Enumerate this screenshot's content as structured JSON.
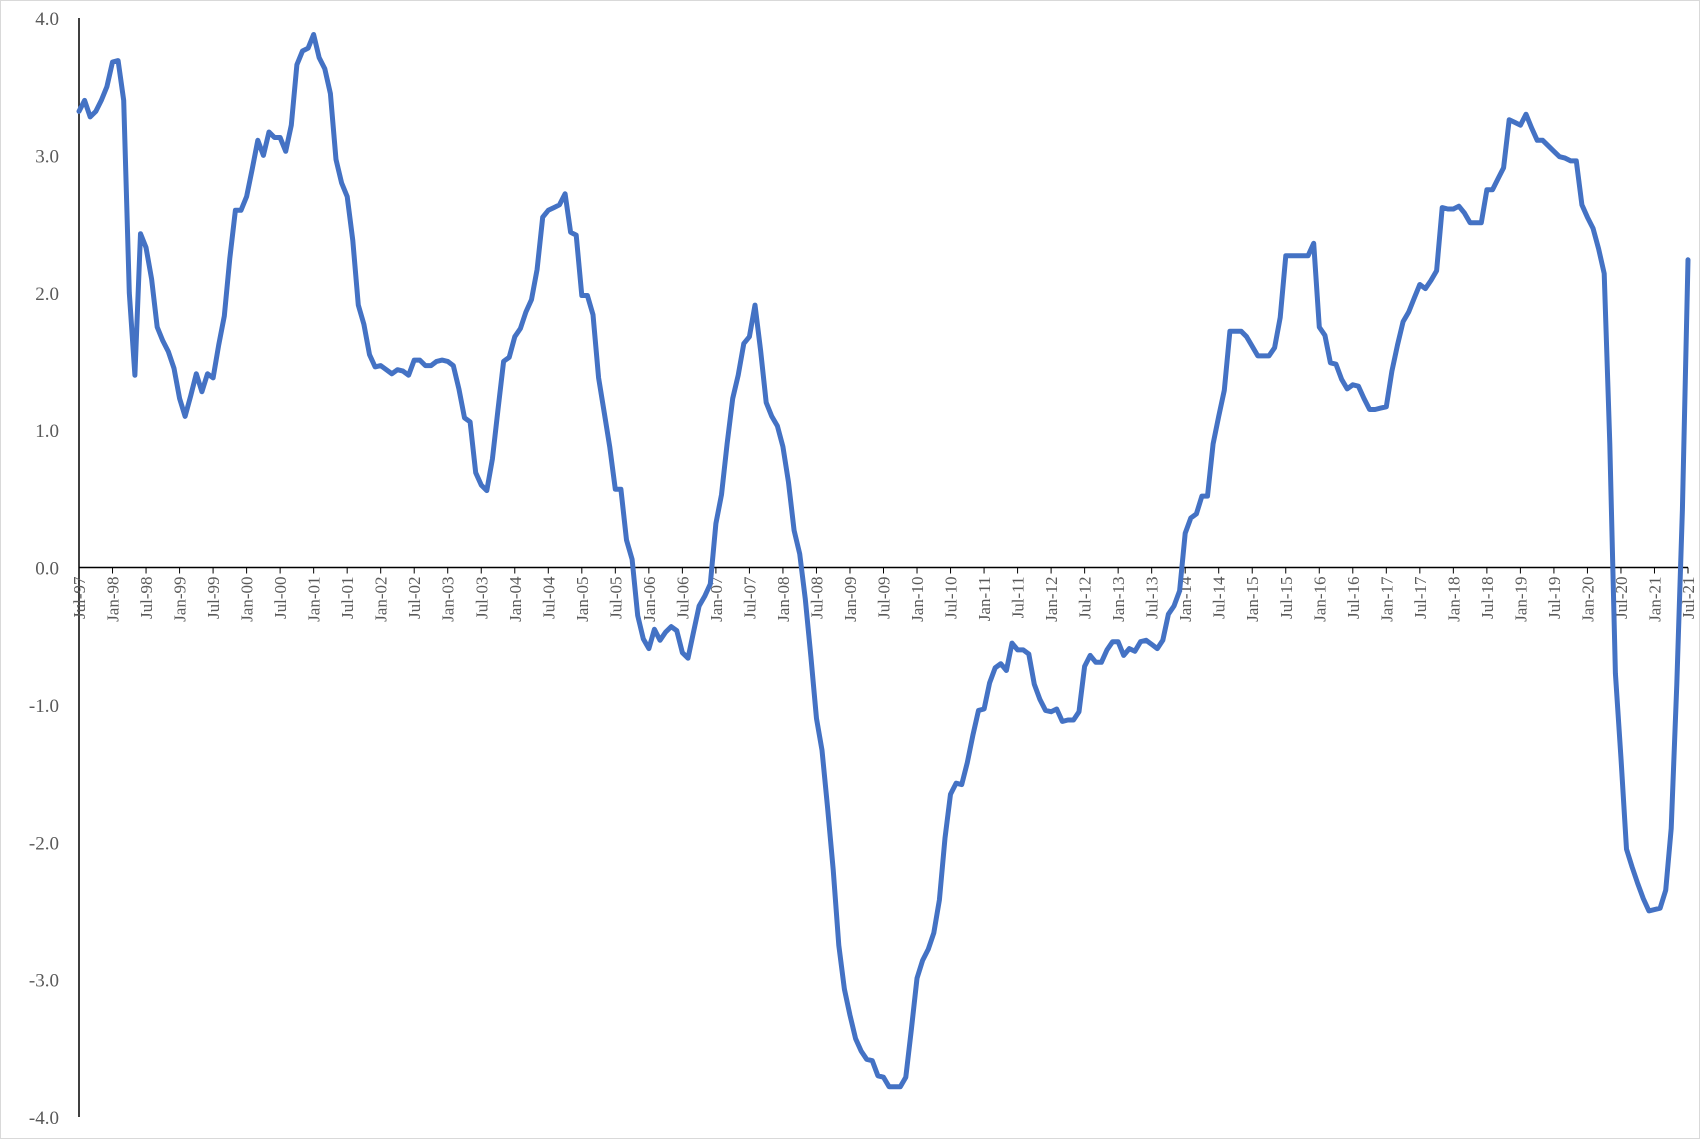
{
  "chart_data": {
    "type": "line",
    "title": "",
    "xlabel": "",
    "ylabel": "",
    "ylim": [
      -4.0,
      4.0
    ],
    "yticks": [
      "4.0",
      "3.0",
      "2.0",
      "1.0",
      "0.0",
      "-1.0",
      "-2.0",
      "-3.0",
      "-4.0"
    ],
    "xlim": [
      "1997-07",
      "2021-07"
    ],
    "xtick_labels": [
      "Jul-97",
      "Jan-98",
      "Jul-98",
      "Jan-99",
      "Jul-99",
      "Jan-00",
      "Jul-00",
      "Jan-01",
      "Jul-01",
      "Jan-02",
      "Jul-02",
      "Jan-03",
      "Jul-03",
      "Jan-04",
      "Jul-04",
      "Jan-05",
      "Jul-05",
      "Jan-06",
      "Jul-06",
      "Jan-07",
      "Jul-07",
      "Jan-08",
      "Jul-08",
      "Jan-09",
      "Jul-09",
      "Jan-10",
      "Jul-10",
      "Jan-11",
      "Jul-11",
      "Jan-12",
      "Jul-12",
      "Jan-13",
      "Jul-13",
      "Jan-14",
      "Jul-14",
      "Jan-15",
      "Jul-15",
      "Jan-16",
      "Jul-16",
      "Jan-17",
      "Jul-17",
      "Jan-18",
      "Jul-18",
      "Jan-19",
      "Jul-19",
      "Jan-20",
      "Jul-20",
      "Jan-21",
      "Jul-21"
    ],
    "grid": false,
    "legend": "none",
    "line_color": "#4472c4",
    "series": [
      {
        "x": [
          "1997-07",
          "1997-08",
          "1997-09",
          "1997-10",
          "1997-11",
          "1997-12",
          "1998-01",
          "1998-02",
          "1998-03",
          "1998-04",
          "1998-05",
          "1998-06",
          "1998-07",
          "1998-08",
          "1998-09",
          "1998-10",
          "1998-11",
          "1998-12",
          "1999-01",
          "1999-02",
          "1999-03",
          "1999-04",
          "1999-05",
          "1999-06",
          "1999-07",
          "1999-08",
          "1999-09",
          "1999-10",
          "1999-11",
          "1999-12",
          "2000-01",
          "2000-02",
          "2000-03",
          "2000-04",
          "2000-05",
          "2000-06",
          "2000-07",
          "2000-08",
          "2000-09",
          "2000-10",
          "2000-11",
          "2000-12",
          "2001-01",
          "2001-02",
          "2001-03",
          "2001-04",
          "2001-05",
          "2001-06",
          "2001-07",
          "2001-08",
          "2001-09",
          "2001-10",
          "2001-11",
          "2001-12",
          "2002-01",
          "2002-03",
          "2002-04",
          "2002-05",
          "2002-06",
          "2002-07",
          "2002-08",
          "2002-09",
          "2002-10",
          "2002-11",
          "2002-12",
          "2003-01",
          "2003-02",
          "2003-03",
          "2003-04",
          "2003-05",
          "2003-06",
          "2003-07",
          "2003-08",
          "2003-09",
          "2003-10",
          "2003-11",
          "2003-12",
          "2004-01",
          "2004-02",
          "2004-03",
          "2004-04",
          "2004-05",
          "2004-06",
          "2004-07",
          "2004-08",
          "2004-09",
          "2004-10",
          "2004-11",
          "2004-12",
          "2005-01",
          "2005-02",
          "2005-03",
          "2005-04",
          "2005-05",
          "2005-06",
          "2005-07",
          "2005-08",
          "2005-09",
          "2005-10",
          "2005-11",
          "2005-12",
          "2006-01",
          "2006-02",
          "2006-03",
          "2006-04",
          "2006-05",
          "2006-06",
          "2006-07",
          "2006-08",
          "2006-09",
          "2006-10",
          "2006-11",
          "2006-12",
          "2007-01",
          "2007-02",
          "2007-03",
          "2007-04",
          "2007-05",
          "2007-06",
          "2007-07",
          "2007-08",
          "2007-09",
          "2007-10",
          "2007-11",
          "2007-12",
          "2008-01",
          "2008-02",
          "2008-03",
          "2008-04",
          "2008-05",
          "2008-06",
          "2008-07",
          "2008-08",
          "2008-09",
          "2008-10",
          "2008-11",
          "2008-12",
          "2009-01",
          "2009-02",
          "2009-03",
          "2009-04",
          "2009-05",
          "2009-06",
          "2009-07",
          "2009-08",
          "2009-09",
          "2009-10",
          "2009-11",
          "2009-12",
          "2010-01",
          "2010-02",
          "2010-03",
          "2010-04",
          "2010-05",
          "2010-06",
          "2010-07",
          "2010-08",
          "2010-09",
          "2010-10",
          "2010-11",
          "2010-12",
          "2011-01",
          "2011-02",
          "2011-03",
          "2011-04",
          "2011-05",
          "2011-06",
          "2011-07",
          "2011-08",
          "2011-09",
          "2011-10",
          "2011-11",
          "2011-12",
          "2012-01",
          "2012-02",
          "2012-03",
          "2012-04",
          "2012-05",
          "2012-06",
          "2012-07",
          "2012-08",
          "2012-09",
          "2012-10",
          "2012-11",
          "2012-12",
          "2013-01",
          "2013-02",
          "2013-03",
          "2013-04",
          "2013-05",
          "2013-06",
          "2013-07",
          "2013-08",
          "2013-09",
          "2013-10",
          "2013-11",
          "2013-12",
          "2014-01",
          "2014-02",
          "2014-03",
          "2014-04",
          "2014-05",
          "2014-06",
          "2014-07",
          "2014-08",
          "2014-09",
          "2014-10",
          "2014-11",
          "2014-12",
          "2015-01",
          "2015-02",
          "2015-03",
          "2015-04",
          "2015-05",
          "2015-06",
          "2015-07",
          "2015-08",
          "2015-09",
          "2015-10",
          "2015-11",
          "2015-12",
          "2016-01",
          "2016-02",
          "2016-03",
          "2016-04",
          "2016-05",
          "2016-06",
          "2016-07",
          "2016-08",
          "2016-09",
          "2016-10",
          "2016-11",
          "2016-12",
          "2017-01",
          "2017-02",
          "2017-03",
          "2017-04",
          "2017-05",
          "2017-06",
          "2017-07",
          "2017-08",
          "2017-09",
          "2017-10",
          "2017-11",
          "2017-12",
          "2018-01",
          "2018-02",
          "2018-03",
          "2018-04",
          "2018-05",
          "2018-06",
          "2018-07",
          "2018-08",
          "2018-09",
          "2018-10",
          "2018-11",
          "2018-12",
          "2019-01",
          "2019-02",
          "2019-03",
          "2019-04",
          "2019-05",
          "2019-06",
          "2019-07",
          "2019-08",
          "2019-09",
          "2019-10",
          "2019-11",
          "2019-12",
          "2020-01",
          "2020-02",
          "2020-03",
          "2020-04",
          "2020-05",
          "2020-06",
          "2020-07",
          "2020-08",
          "2020-09",
          "2020-10",
          "2020-11",
          "2020-12",
          "2021-01",
          "2021-02",
          "2021-03",
          "2021-04",
          "2021-05",
          "2021-06",
          "2021-07"
        ],
        "y": [
          3.32,
          3.4,
          3.28,
          3.32,
          3.4,
          3.5,
          3.68,
          3.69,
          3.4,
          2.0,
          1.4,
          2.43,
          2.33,
          2.1,
          1.75,
          1.65,
          1.57,
          1.45,
          1.23,
          1.1,
          1.25,
          1.41,
          1.28,
          1.41,
          1.38,
          1.62,
          1.83,
          2.25,
          2.6,
          2.6,
          2.7,
          2.9,
          3.11,
          3.0,
          3.17,
          3.13,
          3.13,
          3.03,
          3.22,
          3.66,
          3.76,
          3.78,
          3.88,
          3.71,
          3.63,
          3.45,
          2.97,
          2.8,
          2.7,
          2.38,
          1.91,
          1.77,
          1.55,
          1.46,
          1.47,
          1.41,
          1.44,
          1.43,
          1.4,
          1.51,
          1.51,
          1.47,
          1.47,
          1.5,
          1.51,
          1.5,
          1.47,
          1.3,
          1.09,
          1.06,
          0.69,
          0.6,
          0.56,
          0.79,
          1.15,
          1.5,
          1.53,
          1.68,
          1.74,
          1.86,
          1.95,
          2.17,
          2.55,
          2.6,
          2.62,
          2.64,
          2.72,
          2.44,
          2.42,
          1.98,
          1.98,
          1.84,
          1.38,
          1.13,
          0.88,
          0.57,
          0.57,
          0.2,
          0.06,
          -0.35,
          -0.52,
          -0.59,
          -0.45,
          -0.53,
          -0.47,
          -0.43,
          -0.46,
          -0.62,
          -0.66,
          -0.47,
          -0.28,
          -0.21,
          -0.12,
          0.32,
          0.53,
          0.9,
          1.23,
          1.4,
          1.63,
          1.68,
          1.91,
          1.58,
          1.2,
          1.1,
          1.03,
          0.88,
          0.62,
          0.27,
          0.1,
          -0.23,
          -0.65,
          -1.1,
          -1.33,
          -1.75,
          -2.2,
          -2.75,
          -3.07,
          -3.26,
          -3.43,
          -3.52,
          -3.58,
          -3.59,
          -3.7,
          -3.71,
          -3.78,
          -3.78,
          -3.78,
          -3.71,
          -3.36,
          -2.99,
          -2.86,
          -2.78,
          -2.66,
          -2.42,
          -1.97,
          -1.65,
          -1.57,
          -1.58,
          -1.42,
          -1.22,
          -1.04,
          -1.03,
          -0.84,
          -0.73,
          -0.7,
          -0.75,
          -0.55,
          -0.6,
          -0.6,
          -0.63,
          -0.85,
          -0.96,
          -1.04,
          -1.05,
          -1.03,
          -1.12,
          -1.11,
          -1.11,
          -1.05,
          -0.72,
          -0.64,
          -0.69,
          -0.69,
          -0.6,
          -0.54,
          -0.54,
          -0.64,
          -0.59,
          -0.61,
          -0.54,
          -0.53,
          -0.56,
          -0.59,
          -0.53,
          -0.34,
          -0.28,
          -0.17,
          0.25,
          0.36,
          0.39,
          0.52,
          0.52,
          0.9,
          1.1,
          1.29,
          1.72,
          1.72,
          1.72,
          1.68,
          1.61,
          1.54,
          1.54,
          1.54,
          1.6,
          1.82,
          2.27,
          2.27,
          2.27,
          2.27,
          2.27,
          2.36,
          1.75,
          1.69,
          1.49,
          1.48,
          1.37,
          1.3,
          1.33,
          1.32,
          1.23,
          1.15,
          1.15,
          1.16,
          1.17,
          1.43,
          1.62,
          1.79,
          1.86,
          1.96,
          2.06,
          2.03,
          2.09,
          2.16,
          2.62,
          2.61,
          2.61,
          2.63,
          2.58,
          2.51,
          2.51,
          2.51,
          2.75,
          2.75,
          2.83,
          2.91,
          3.26,
          3.24,
          3.22,
          3.3,
          3.2,
          3.11,
          3.11,
          3.07,
          3.03,
          2.99,
          2.98,
          2.96,
          2.96,
          2.64,
          2.55,
          2.47,
          2.32,
          2.14,
          0.9,
          -0.77,
          -1.39,
          -2.05,
          -2.18,
          -2.3,
          -2.41,
          -2.5,
          -2.49,
          -2.48,
          -2.35,
          -1.9,
          -0.85,
          0.42,
          2.24
        ]
      }
    ]
  }
}
